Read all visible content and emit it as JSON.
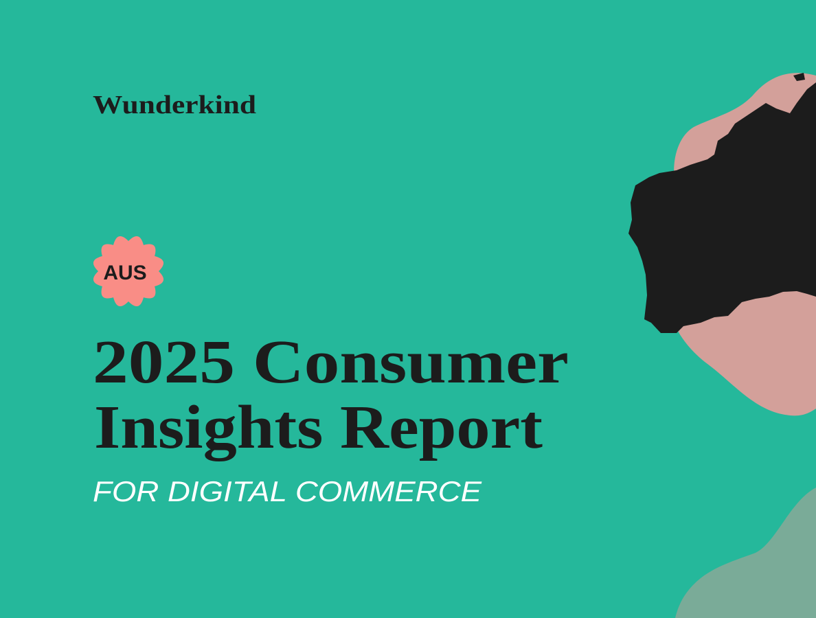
{
  "brand": "Wunderkind",
  "badge": "AUS",
  "title_lines": [
    "2025 Consumer",
    "Insights Report"
  ],
  "subtitle": "FOR DIGITAL COMMERCE"
}
